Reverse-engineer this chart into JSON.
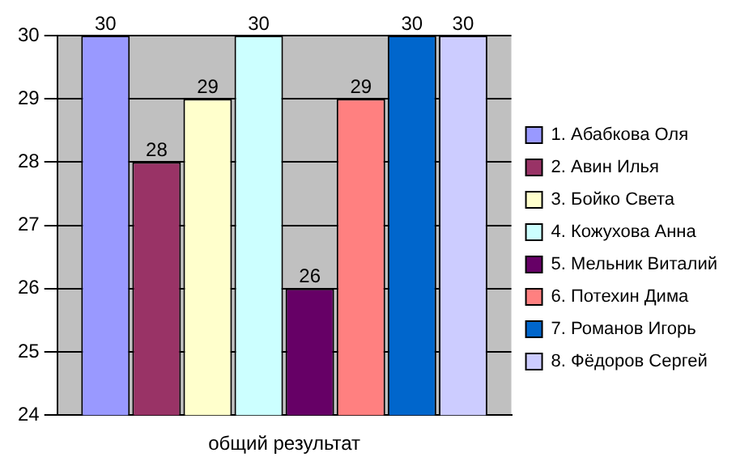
{
  "chart_data": {
    "type": "bar",
    "categories": [
      "общий результат"
    ],
    "series": [
      {
        "name": "1. Абабкова Оля",
        "color": "#9999ff",
        "values": [
          30
        ]
      },
      {
        "name": "2. Авин Илья",
        "color": "#993366",
        "values": [
          28
        ]
      },
      {
        "name": "3. Бойко Света",
        "color": "#ffffcc",
        "values": [
          29
        ]
      },
      {
        "name": "4. Кожухова Анна",
        "color": "#ccffff",
        "values": [
          30
        ]
      },
      {
        "name": "5. Мельник Виталий",
        "color": "#660066",
        "values": [
          26
        ]
      },
      {
        "name": "6. Потехин Дима",
        "color": "#ff8080",
        "values": [
          29
        ]
      },
      {
        "name": "7. Романов Игорь",
        "color": "#0066cc",
        "values": [
          30
        ]
      },
      {
        "name": "8. Фёдоров Сергей",
        "color": "#ccccff",
        "values": [
          30
        ]
      }
    ],
    "ylim": [
      24,
      30
    ],
    "yticks": [
      24,
      25,
      26,
      27,
      28,
      29,
      30
    ],
    "grid": "y",
    "legend": "right",
    "data_labels": true
  }
}
